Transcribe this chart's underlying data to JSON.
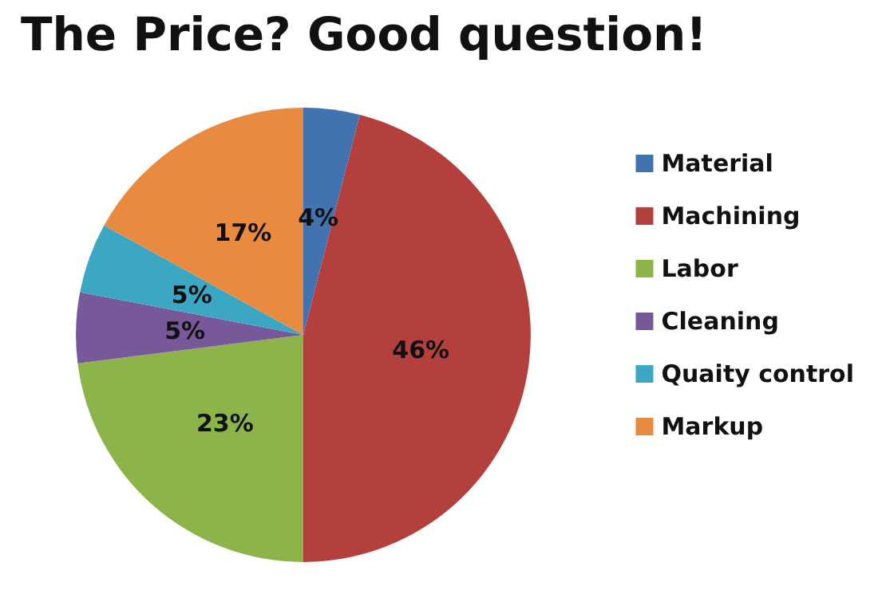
{
  "chart_data": {
    "type": "pie",
    "title": "The Price? Good question!",
    "categories": [
      "Material",
      "Machining",
      "Labor",
      "Cleaning",
      "Quaity control",
      "Markup"
    ],
    "values": [
      4,
      46,
      23,
      5,
      5,
      17
    ],
    "value_labels": [
      "4%",
      "46%",
      "23%",
      "5%",
      "5%",
      "17%"
    ],
    "colors": [
      "#4372b0",
      "#b3403d",
      "#8db44b",
      "#77599a",
      "#3ba7c2",
      "#e88a3f"
    ],
    "legend": "right"
  }
}
